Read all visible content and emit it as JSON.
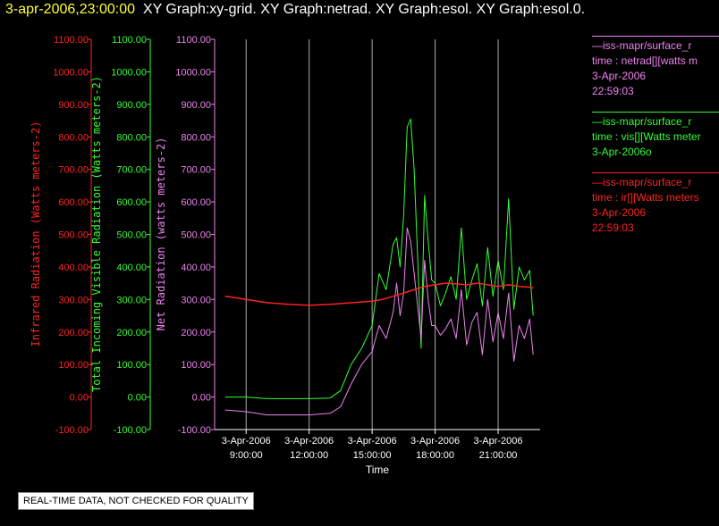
{
  "header": {
    "timestamp": "3-apr-2006,23:00:00",
    "graphs": "XY Graph:xy-grid.  XY Graph:netrad.  XY Graph:esol.  XY Graph:esol.0."
  },
  "legend": [
    {
      "line1": "—iss-mapr/surface_r",
      "line2": "time : netrad[][watts m",
      "line3": "3-Apr-2006",
      "line4": "22:59:03",
      "color": "#ee82ee"
    },
    {
      "line1": "—iss-mapr/surface_r",
      "line2": "time : vis[][Watts meter",
      "line3": "3-Apr-2006o",
      "line4": "",
      "color": "#33ff33"
    },
    {
      "line1": "—iss-mapr/surface_r",
      "line2": "time : ir[][Watts meters",
      "line3": "3-Apr-2006",
      "line4": "22:59:03",
      "color": "#ff2222"
    }
  ],
  "notice": "REAL-TIME DATA, NOT CHECKED FOR QUALITY",
  "chart_data": {
    "type": "line",
    "xlabel": "Time",
    "xlim": [
      "3-Apr-2006 07:30",
      "3-Apr-2006 23:00"
    ],
    "xticks": [
      {
        "date": "3-Apr-2006",
        "time": "9:00:00"
      },
      {
        "date": "3-Apr-2006",
        "time": "12:00:00"
      },
      {
        "date": "3-Apr-2006",
        "time": "15:00:00"
      },
      {
        "date": "3-Apr-2006",
        "time": "18:00:00"
      },
      {
        "date": "3-Apr-2006",
        "time": "21:00:00"
      }
    ],
    "axes": [
      {
        "label": "Infrared Radiation (Watts meters-2)",
        "color": "#ff2222",
        "ylim": [
          -100,
          1100
        ]
      },
      {
        "label": "Total Incoming Visible Radiation (Watts meters-2)",
        "color": "#33ff33",
        "ylim": [
          -100,
          1100
        ]
      },
      {
        "label": "Net Radiation (watts meters-2)",
        "color": "#ee82ee",
        "ylim": [
          -100,
          1100
        ]
      }
    ],
    "ytick_labels": [
      "1100.00",
      "1000.00",
      "900.00",
      "800.00",
      "700.00",
      "600.00",
      "500.00",
      "400.00",
      "300.00",
      "200.00",
      "100.00",
      "0.00",
      "-100.00"
    ],
    "grid": true,
    "series": [
      {
        "color": "#33ff33",
        "axis": 1,
        "x": [
          "08:00",
          "09:00",
          "10:00",
          "11:00",
          "12:00",
          "13:00",
          "13:30",
          "14:00",
          "14:30",
          "15:00",
          "15:20",
          "15:40",
          "16:00",
          "16:10",
          "16:20",
          "16:30",
          "16:40",
          "16:50",
          "17:00",
          "17:10",
          "17:20",
          "17:30",
          "17:40",
          "17:50",
          "18:00",
          "18:15",
          "18:30",
          "18:45",
          "19:00",
          "19:15",
          "19:30",
          "19:45",
          "20:00",
          "20:15",
          "20:30",
          "20:45",
          "21:00",
          "21:15",
          "21:30",
          "21:45",
          "22:00",
          "22:15",
          "22:30",
          "22:40"
        ],
        "values": [
          0,
          0,
          -5,
          -5,
          -5,
          -3,
          20,
          100,
          150,
          220,
          380,
          330,
          470,
          490,
          400,
          560,
          830,
          855,
          700,
          430,
          150,
          620,
          480,
          360,
          350,
          280,
          320,
          370,
          300,
          520,
          300,
          360,
          410,
          280,
          460,
          310,
          420,
          330,
          610,
          270,
          400,
          360,
          390,
          250
        ]
      },
      {
        "color": "#ee82ee",
        "axis": 2,
        "x": [
          "08:00",
          "09:00",
          "10:00",
          "11:00",
          "12:00",
          "13:00",
          "13:30",
          "14:00",
          "14:30",
          "15:00",
          "15:20",
          "15:40",
          "16:00",
          "16:10",
          "16:20",
          "16:30",
          "16:40",
          "16:50",
          "17:00",
          "17:10",
          "17:20",
          "17:30",
          "17:40",
          "17:50",
          "18:00",
          "18:15",
          "18:30",
          "18:45",
          "19:00",
          "19:15",
          "19:30",
          "19:45",
          "20:00",
          "20:15",
          "20:30",
          "20:45",
          "21:00",
          "21:15",
          "21:30",
          "21:45",
          "22:00",
          "22:15",
          "22:30",
          "22:40"
        ],
        "values": [
          -40,
          -45,
          -55,
          -55,
          -55,
          -50,
          -30,
          40,
          100,
          140,
          220,
          180,
          260,
          350,
          250,
          320,
          520,
          480,
          380,
          280,
          180,
          420,
          300,
          220,
          220,
          190,
          210,
          240,
          180,
          330,
          160,
          230,
          260,
          130,
          300,
          170,
          260,
          180,
          320,
          110,
          220,
          180,
          240,
          130
        ]
      },
      {
        "color": "#ff2222",
        "axis": 0,
        "x": [
          "08:00",
          "09:00",
          "10:00",
          "11:00",
          "12:00",
          "13:00",
          "14:00",
          "15:00",
          "15:30",
          "16:00",
          "16:30",
          "17:00",
          "17:30",
          "18:00",
          "18:30",
          "19:00",
          "19:30",
          "20:00",
          "20:30",
          "21:00",
          "21:30",
          "22:00",
          "22:30",
          "22:40"
        ],
        "values": [
          310,
          300,
          290,
          285,
          282,
          285,
          290,
          295,
          300,
          310,
          320,
          330,
          340,
          345,
          350,
          348,
          345,
          350,
          345,
          340,
          345,
          340,
          338,
          335
        ]
      }
    ]
  }
}
